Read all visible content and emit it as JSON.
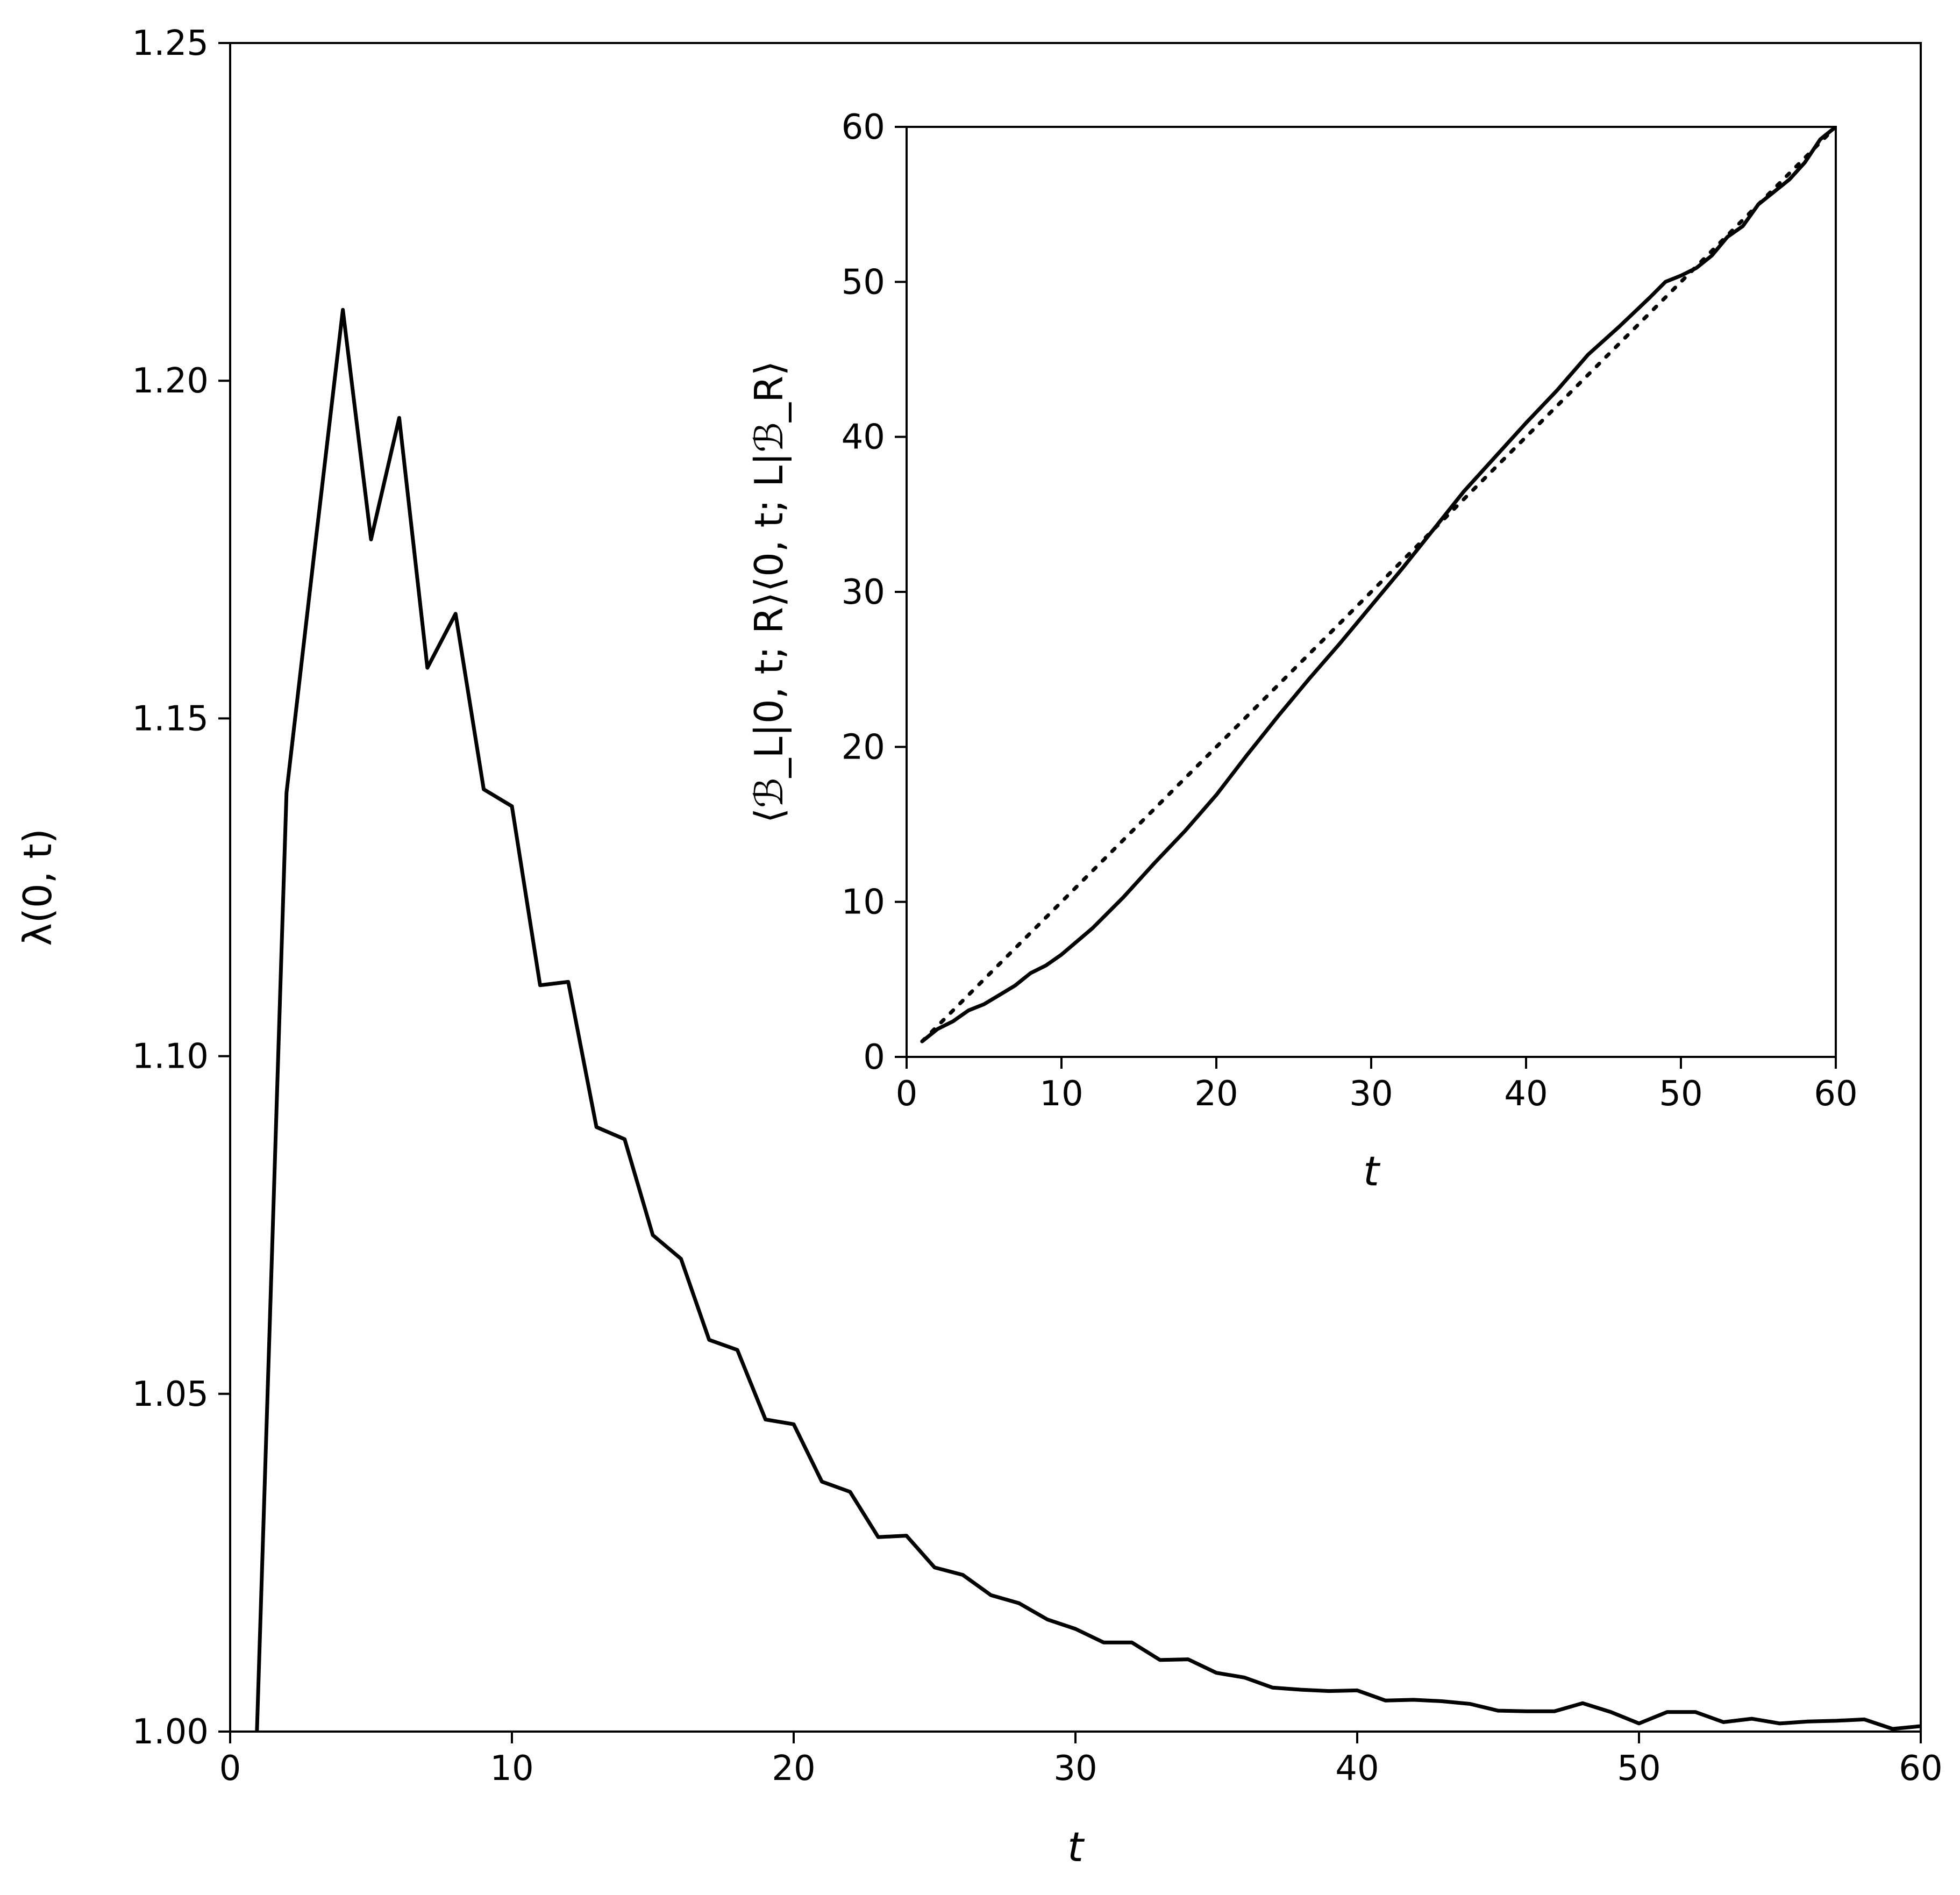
{
  "colors": {
    "line": "#000000",
    "background": "#ffffff",
    "axes": "#000000"
  },
  "chart_data": [
    {
      "type": "line",
      "id": "main",
      "title": "",
      "xlabel": "t",
      "ylabel": "λ(0, t)",
      "xlim": [
        0,
        60
      ],
      "ylim": [
        1.0,
        1.25
      ],
      "xticks": [
        0,
        10,
        20,
        30,
        40,
        50,
        60
      ],
      "xtick_labels": [
        "0",
        "10",
        "20",
        "30",
        "40",
        "50",
        "60"
      ],
      "yticks": [
        1.0,
        1.05,
        1.1,
        1.15,
        1.2,
        1.25
      ],
      "ytick_labels": [
        "1.00",
        "1.05",
        "1.10",
        "1.15",
        "1.20",
        "1.25"
      ],
      "grid": false,
      "series": [
        {
          "style": "solid",
          "x": [
            0.95,
            2,
            3,
            4,
            5,
            6,
            7,
            8,
            9,
            10,
            11,
            12,
            13,
            14,
            15,
            16,
            17,
            18,
            19,
            20,
            21,
            22,
            23,
            24,
            25,
            26,
            27,
            28,
            29,
            30,
            31,
            32,
            33,
            34,
            35,
            36,
            37,
            38,
            39,
            40,
            41,
            42,
            43,
            44,
            45,
            46,
            47,
            48,
            49,
            50,
            51,
            52,
            53,
            54,
            55,
            56,
            57,
            58,
            59,
            60
          ],
          "values": [
            1.0,
            1.139,
            1.175,
            1.2105,
            1.1765,
            1.1945,
            1.1575,
            1.1655,
            1.1395,
            1.137,
            1.1105,
            1.111,
            1.0895,
            1.0877,
            1.0735,
            1.07,
            1.058,
            1.0565,
            1.0462,
            1.0455,
            1.037,
            1.0355,
            1.0288,
            1.029,
            1.0243,
            1.0232,
            1.0202,
            1.019,
            1.0166,
            1.0152,
            1.0132,
            1.0132,
            1.0106,
            1.0107,
            1.0087,
            1.008,
            1.0065,
            1.0062,
            1.006,
            1.0061,
            1.0046,
            1.0047,
            1.0045,
            1.0041,
            1.0031,
            1.003,
            1.003,
            1.0042,
            1.0029,
            1.0012,
            1.0029,
            1.0029,
            1.0014,
            1.0019,
            1.0012,
            1.0015,
            1.0016,
            1.0018,
            1.0004,
            1.0008
          ]
        }
      ]
    },
    {
      "type": "line",
      "id": "inset",
      "title": "",
      "xlabel": "t",
      "ylabel": "⟨ℬ_L|0, t; R⟩⟨0, t; L|ℬ_R⟩",
      "xlim": [
        0,
        60
      ],
      "ylim": [
        0,
        60
      ],
      "xticks": [
        0,
        10,
        20,
        30,
        40,
        50,
        60
      ],
      "xtick_labels": [
        "0",
        "10",
        "20",
        "30",
        "40",
        "50",
        "60"
      ],
      "yticks": [
        0,
        10,
        20,
        30,
        40,
        50,
        60
      ],
      "ytick_labels": [
        "0",
        "10",
        "20",
        "30",
        "40",
        "50",
        "60"
      ],
      "grid": false,
      "series": [
        {
          "style": "solid",
          "x": [
            1,
            2,
            3,
            4,
            5,
            6,
            7,
            8,
            9,
            10,
            12,
            14,
            16,
            18,
            20,
            22,
            24,
            26,
            28,
            30,
            32,
            34,
            36,
            38,
            40,
            42,
            44,
            46,
            48,
            49,
            50,
            51,
            52,
            53,
            54,
            55,
            56,
            57,
            58,
            59,
            60
          ],
          "values": [
            1.0,
            1.8,
            2.3,
            3.0,
            3.4,
            4.0,
            4.6,
            5.4,
            5.9,
            6.6,
            8.3,
            10.3,
            12.5,
            14.6,
            16.9,
            19.5,
            22.0,
            24.4,
            26.7,
            29.1,
            31.5,
            34.0,
            36.5,
            38.7,
            40.9,
            43.0,
            45.3,
            47.1,
            49.0,
            50.0,
            50.4,
            50.9,
            51.7,
            52.9,
            53.6,
            55.0,
            55.8,
            56.6,
            57.7,
            59.2,
            60.0
          ]
        },
        {
          "style": "dotted",
          "x": [
            1,
            60
          ],
          "values": [
            1,
            60
          ]
        }
      ]
    }
  ]
}
